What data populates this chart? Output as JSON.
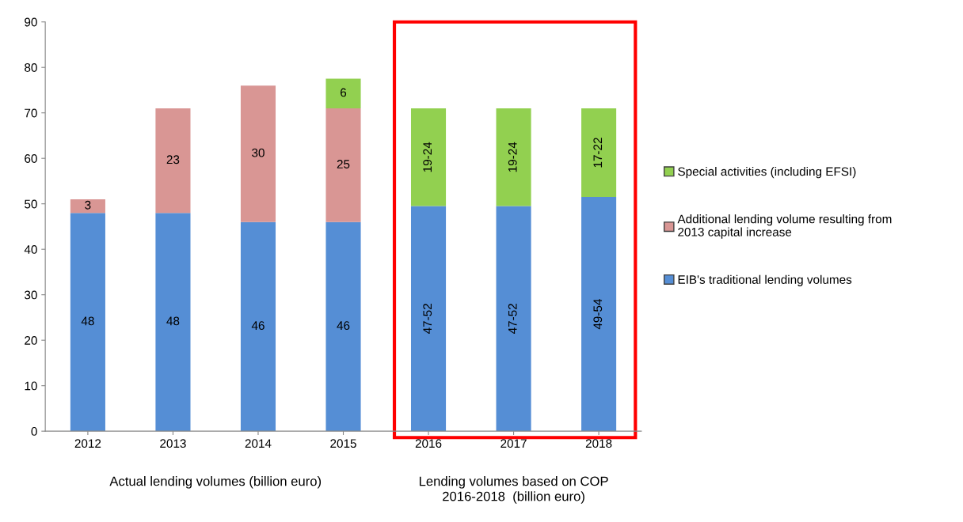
{
  "chart_data": {
    "type": "bar",
    "stacked": true,
    "categories": [
      "2012",
      "2013",
      "2014",
      "2015",
      "2016",
      "2017",
      "2018"
    ],
    "series": [
      {
        "name": "EIB's traditional lending volumes",
        "color": "#558ed5",
        "values": [
          48,
          48,
          46,
          46,
          49.5,
          49.5,
          51.5
        ],
        "value_labels": [
          "48",
          "48",
          "46",
          "46",
          "47-52",
          "47-52",
          "49-54"
        ]
      },
      {
        "name": "Additional lending volume resulting from\n2013 capital increase",
        "color": "#d99694",
        "values": [
          3,
          23,
          30,
          25,
          null,
          null,
          null
        ],
        "value_labels": [
          "3",
          "23",
          "30",
          "25",
          null,
          null,
          null
        ]
      },
      {
        "name": "Special activities (including EFSI)",
        "color": "#92d050",
        "values": [
          null,
          null,
          null,
          6.5,
          21.5,
          21.5,
          19.5
        ],
        "value_labels": [
          null,
          null,
          null,
          "6",
          "19-24",
          "19-24",
          "17-22"
        ]
      }
    ],
    "ylim": [
      0,
      90
    ],
    "yticks": [
      0,
      10,
      20,
      30,
      40,
      50,
      60,
      70,
      80,
      90
    ],
    "grid": false,
    "legend": "right",
    "annotations": [
      "Actual lending volumes (billion euro)",
      "Lending volumes based on COP\n2016-2018  (billion euro)"
    ]
  }
}
